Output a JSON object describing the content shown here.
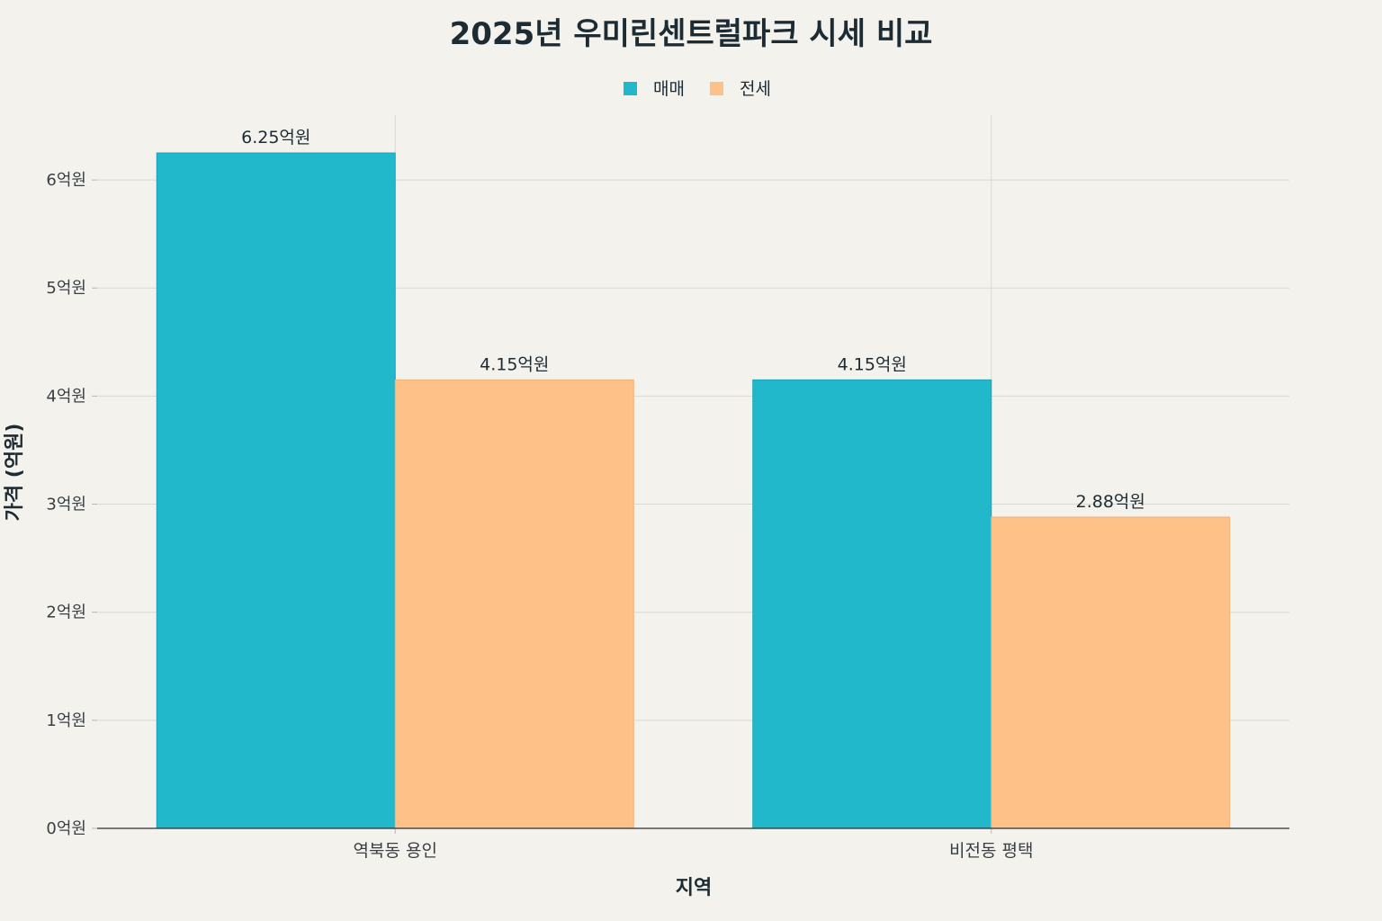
{
  "chart_data": {
    "type": "bar",
    "title": "2025년 우미린센트럴파크 시세 비교",
    "xlabel": "지역",
    "ylabel": "가격 (억원)",
    "categories": [
      "역북동 용인",
      "비전동 평택"
    ],
    "series": [
      {
        "name": "매매",
        "color": "#21b8cc",
        "values": [
          6.25,
          4.15
        ],
        "labels": [
          "6.25억원",
          "4.15억원"
        ]
      },
      {
        "name": "전세",
        "color": "#fec187",
        "values": [
          4.15,
          2.88
        ],
        "labels": [
          "4.15억원",
          "2.88억원"
        ]
      }
    ],
    "ylim": [
      0,
      6.6
    ],
    "yticks": [
      0,
      1,
      2,
      3,
      4,
      5,
      6
    ],
    "ytick_labels": [
      "0억원",
      "1억원",
      "2억원",
      "3억원",
      "4억원",
      "5억원",
      "6억원"
    ],
    "grid": true,
    "legend_position": "top-center"
  }
}
